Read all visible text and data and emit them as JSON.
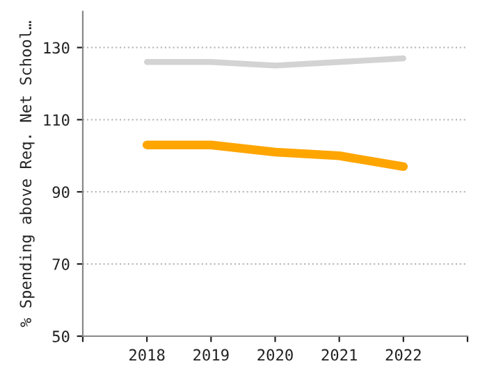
{
  "chart_data": {
    "type": "line",
    "ylabel": "% Spending above Req. Net School…",
    "x": [
      2018,
      2019,
      2020,
      2021,
      2022
    ],
    "series": [
      {
        "color": "#d3d3d3",
        "values": [
          126,
          126,
          125,
          126,
          127
        ]
      },
      {
        "color": "#ffa500",
        "values": [
          103,
          103,
          101,
          100,
          97
        ]
      }
    ],
    "xlim": [
      2017,
      2023
    ],
    "xticks": [
      {
        "value": 2017,
        "label": null
      },
      2018,
      2019,
      2020,
      2021,
      2022,
      {
        "value": 2023,
        "label": null
      }
    ],
    "ylim": [
      50,
      140
    ],
    "yticks": [
      50,
      70,
      90,
      110,
      130
    ],
    "grid": "y",
    "line_style": "solid",
    "marker": "none"
  }
}
